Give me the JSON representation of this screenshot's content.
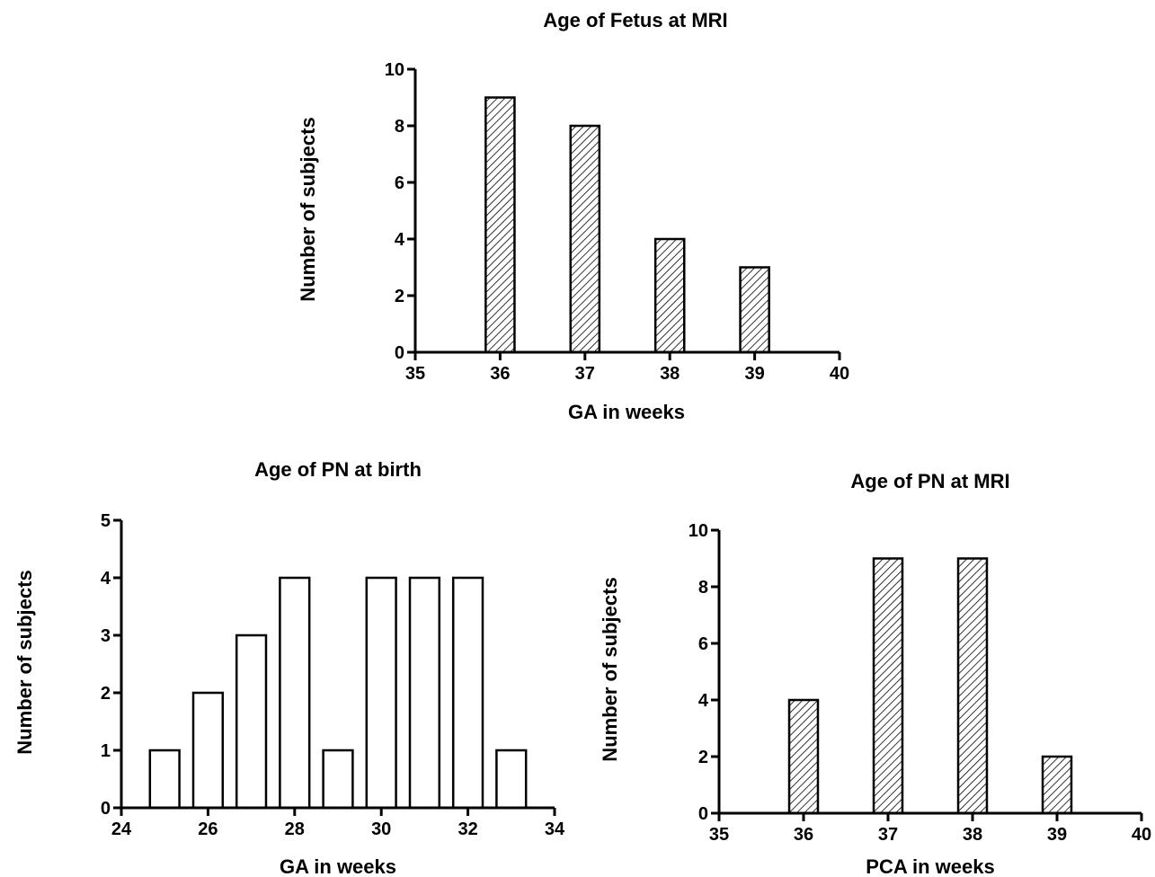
{
  "chart_data": [
    {
      "id": "fetus",
      "type": "bar",
      "title": "Age of Fetus at MRI",
      "xlabel": "GA in weeks",
      "ylabel": "Number of subjects",
      "xlim": [
        35,
        40
      ],
      "ylim": [
        0,
        10
      ],
      "xticks": [
        35,
        36,
        37,
        38,
        39,
        40
      ],
      "yticks": [
        0,
        2,
        4,
        6,
        8,
        10
      ],
      "fill": "hatched",
      "bar_width": 0.34,
      "x": [
        36,
        37,
        38,
        39
      ],
      "values": [
        9,
        8,
        4,
        3
      ]
    },
    {
      "id": "pn-birth",
      "type": "bar",
      "title": "Age of PN at birth",
      "xlabel": "GA in weeks",
      "ylabel": "Number of subjects",
      "xlim": [
        24,
        34
      ],
      "ylim": [
        0,
        5
      ],
      "xticks": [
        24,
        26,
        28,
        30,
        32,
        34
      ],
      "yticks": [
        0,
        1,
        2,
        3,
        4,
        5
      ],
      "fill": "white",
      "bar_width": 0.68,
      "x": [
        25,
        26,
        27,
        28,
        29,
        30,
        31,
        32,
        33
      ],
      "values": [
        1,
        2,
        3,
        4,
        1,
        4,
        4,
        4,
        1
      ]
    },
    {
      "id": "pn-mri",
      "type": "bar",
      "title": "Age of PN at MRI",
      "xlabel": "PCA in weeks",
      "ylabel": "Number of subjects",
      "xlim": [
        35,
        40
      ],
      "ylim": [
        0,
        10
      ],
      "xticks": [
        35,
        36,
        37,
        38,
        39,
        40
      ],
      "yticks": [
        0,
        2,
        4,
        6,
        8,
        10
      ],
      "fill": "hatched",
      "bar_width": 0.34,
      "x": [
        36,
        37,
        38,
        39
      ],
      "values": [
        4,
        9,
        9,
        2
      ]
    }
  ]
}
